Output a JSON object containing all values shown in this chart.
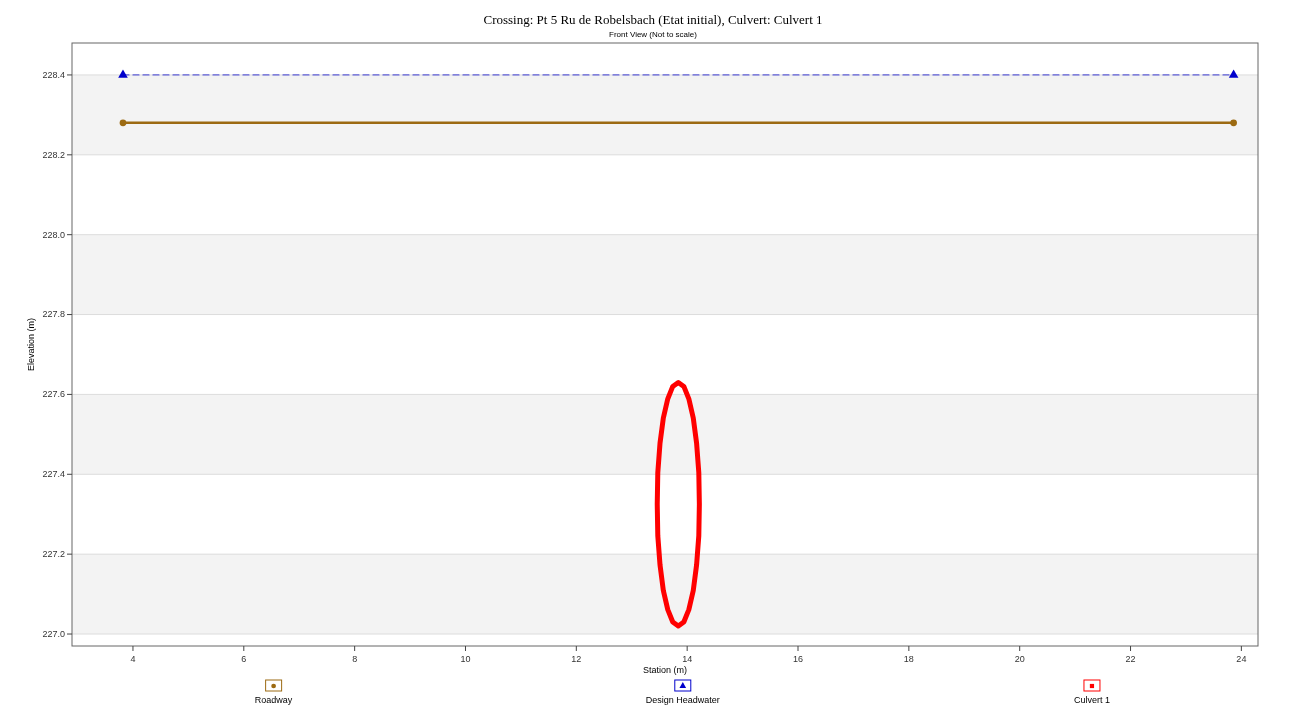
{
  "chart_data": {
    "type": "line",
    "title": "Crossing: Pt 5 Ru de Robelsbach (Etat initial), Culvert: Culvert 1",
    "subtitle": "Front View (Not to scale)",
    "xlabel": "Station (m)",
    "ylabel": "Elevation (m)",
    "xlim": [
      2.9,
      24.3
    ],
    "xticks": [
      4,
      6,
      8,
      10,
      12,
      14,
      16,
      18,
      20,
      22,
      24
    ],
    "ylim": [
      226.97,
      228.48
    ],
    "yticks": [
      {
        "value": 227,
        "label": "227.0"
      },
      {
        "value": 227.2,
        "label": "227.2"
      },
      {
        "value": 227.4,
        "label": "227.4"
      },
      {
        "value": 227.6,
        "label": "227.6"
      },
      {
        "value": 227.8,
        "label": "227.8"
      },
      {
        "value": 228,
        "label": "228.0"
      },
      {
        "value": 228.2,
        "label": "228.2"
      },
      {
        "value": 228.4,
        "label": "228.4"
      }
    ],
    "grid": "y",
    "legend": "bottom",
    "series": [
      {
        "name": "Roadway",
        "color": "#9c6a12",
        "marker": "circle",
        "line_style": "solid",
        "x": [
          3.82,
          23.86
        ],
        "values": [
          228.28,
          228.28
        ]
      },
      {
        "name": "Design Headwater",
        "color": "#0000cc",
        "marker": "triangle",
        "line_style": "dashed",
        "x": [
          3.82,
          23.86
        ],
        "values": [
          228.4,
          228.4
        ]
      },
      {
        "name": "Culvert 1",
        "color": "#ff0000",
        "marker": "none",
        "line_style": "solid",
        "x": [
          13.46,
          13.47,
          13.51,
          13.57,
          13.65,
          13.74,
          13.84,
          13.94,
          14.03,
          14.11,
          14.17,
          14.21,
          14.22,
          null,
          13.46,
          13.47,
          13.51,
          13.57,
          13.65,
          13.74,
          13.84,
          13.94,
          14.03,
          14.11,
          14.17,
          14.21,
          14.22
        ],
        "values": [
          227.325,
          227.404,
          227.478,
          227.541,
          227.589,
          227.62,
          227.63,
          227.62,
          227.589,
          227.541,
          227.478,
          227.404,
          227.325,
          null,
          227.325,
          227.246,
          227.173,
          227.109,
          227.061,
          227.03,
          227.02,
          227.03,
          227.061,
          227.109,
          227.173,
          227.246,
          227.325
        ]
      }
    ]
  }
}
